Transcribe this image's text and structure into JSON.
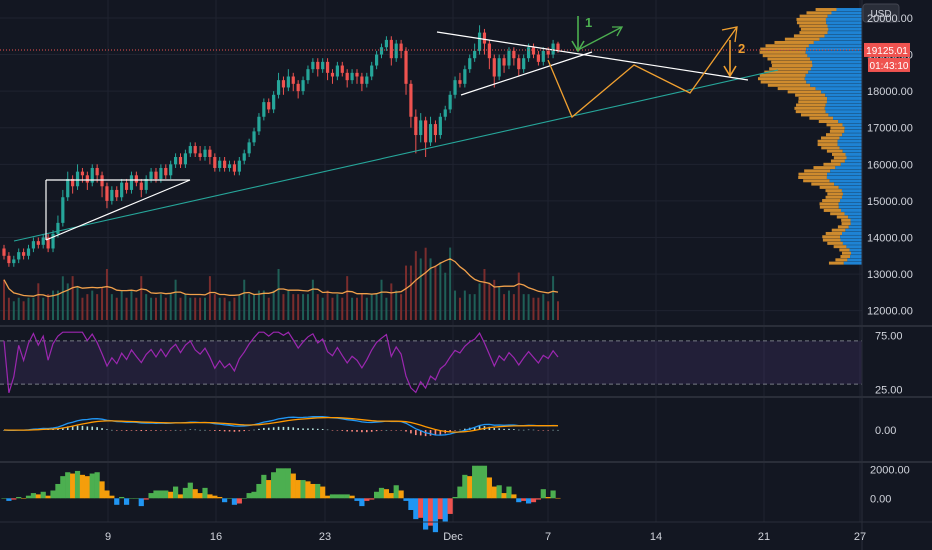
{
  "chart_data": {
    "type": "candlestick",
    "currency": "USD",
    "price_axis": {
      "ticks": [
        12000,
        13000,
        14000,
        15000,
        16000,
        17000,
        18000,
        19000,
        20000
      ],
      "ylim": [
        11800,
        20600
      ]
    },
    "last_price": {
      "value": 19125.01,
      "label": "19125.01",
      "countdown": "01:43:10",
      "color": "#ef5350"
    },
    "time_axis": {
      "labels": [
        "9",
        "16",
        "23",
        "Dec",
        "7",
        "14",
        "21",
        "27"
      ]
    },
    "candles": [
      [
        13700,
        13500,
        13800,
        13400
      ],
      [
        13500,
        13300,
        13600,
        13200
      ],
      [
        13300,
        13400,
        13500,
        13200
      ],
      [
        13400,
        13600,
        13700,
        13300
      ],
      [
        13600,
        13500,
        13700,
        13400
      ],
      [
        13500,
        13700,
        13800,
        13400
      ],
      [
        13700,
        13900,
        14000,
        13600
      ],
      [
        13900,
        13800,
        14000,
        13700
      ],
      [
        13800,
        14000,
        14100,
        13700
      ],
      [
        14000,
        13700,
        14100,
        13600
      ],
      [
        13700,
        14100,
        14200,
        13600
      ],
      [
        14100,
        14400,
        14600,
        14000
      ],
      [
        14400,
        15100,
        15300,
        14300
      ],
      [
        15100,
        15600,
        15800,
        15000
      ],
      [
        15600,
        15400,
        15700,
        15200
      ],
      [
        15400,
        15800,
        16000,
        15300
      ],
      [
        15800,
        15700,
        15900,
        15500
      ],
      [
        15700,
        15500,
        15800,
        15300
      ],
      [
        15500,
        15900,
        16000,
        15400
      ],
      [
        15900,
        15700,
        16000,
        15500
      ],
      [
        15700,
        15400,
        15800,
        15100
      ],
      [
        15400,
        15000,
        15500,
        14800
      ],
      [
        15000,
        15300,
        15400,
        14900
      ],
      [
        15300,
        15100,
        15400,
        15000
      ],
      [
        15100,
        15500,
        15600,
        15000
      ],
      [
        15500,
        15300,
        15600,
        15200
      ],
      [
        15300,
        15700,
        15800,
        15200
      ],
      [
        15700,
        15500,
        15800,
        15400
      ],
      [
        15500,
        15300,
        15600,
        15100
      ],
      [
        15300,
        15600,
        15700,
        15200
      ],
      [
        15600,
        15800,
        15900,
        15500
      ],
      [
        15800,
        15600,
        15900,
        15500
      ],
      [
        15600,
        15900,
        16000,
        15500
      ],
      [
        15900,
        15700,
        16000,
        15600
      ],
      [
        15700,
        16000,
        16100,
        15600
      ],
      [
        16000,
        16200,
        16300,
        15900
      ],
      [
        16200,
        16000,
        16300,
        15900
      ],
      [
        16000,
        16300,
        16400,
        15900
      ],
      [
        16300,
        16500,
        16600,
        16200
      ],
      [
        16500,
        16300,
        16600,
        16200
      ],
      [
        16300,
        16200,
        16500,
        16100
      ],
      [
        16200,
        16400,
        16500,
        16100
      ],
      [
        16400,
        16200,
        16500,
        16000
      ],
      [
        16200,
        15900,
        16300,
        15800
      ],
      [
        15900,
        16100,
        16200,
        15800
      ],
      [
        16100,
        15900,
        16200,
        15800
      ],
      [
        15900,
        16000,
        16100,
        15800
      ],
      [
        16000,
        15800,
        16100,
        15700
      ],
      [
        15800,
        16100,
        16200,
        15700
      ],
      [
        16100,
        16300,
        16400,
        16000
      ],
      [
        16300,
        16600,
        16700,
        16200
      ],
      [
        16600,
        16900,
        17000,
        16500
      ],
      [
        16900,
        17300,
        17400,
        16800
      ],
      [
        17300,
        17700,
        17800,
        17200
      ],
      [
        17700,
        17500,
        17800,
        17400
      ],
      [
        17500,
        17900,
        18000,
        17400
      ],
      [
        17900,
        18300,
        18500,
        17800
      ],
      [
        18300,
        18100,
        18400,
        17900
      ],
      [
        18100,
        18400,
        18600,
        18000
      ],
      [
        18400,
        18200,
        18500,
        18000
      ],
      [
        18200,
        18000,
        18300,
        17800
      ],
      [
        18000,
        18300,
        18400,
        17900
      ],
      [
        18300,
        18600,
        18700,
        18200
      ],
      [
        18600,
        18800,
        18900,
        18500
      ],
      [
        18800,
        18600,
        18900,
        18400
      ],
      [
        18600,
        18800,
        18900,
        18500
      ],
      [
        18800,
        18500,
        18900,
        18300
      ],
      [
        18500,
        18400,
        18600,
        18200
      ],
      [
        18400,
        18700,
        18800,
        18300
      ],
      [
        18700,
        18500,
        18800,
        18400
      ],
      [
        18500,
        18300,
        18600,
        18100
      ],
      [
        18300,
        18500,
        18600,
        18200
      ],
      [
        18500,
        18400,
        18600,
        18200
      ],
      [
        18400,
        18200,
        18500,
        18000
      ],
      [
        18200,
        18400,
        18500,
        18100
      ],
      [
        18400,
        18700,
        18800,
        18300
      ],
      [
        18700,
        19000,
        19100,
        18600
      ],
      [
        19000,
        19200,
        19300,
        18900
      ],
      [
        19200,
        19400,
        19500,
        19100
      ],
      [
        19400,
        18900,
        19500,
        18700
      ],
      [
        18900,
        19300,
        19400,
        18800
      ],
      [
        19300,
        19100,
        19400,
        18900
      ],
      [
        19100,
        18200,
        19200,
        17900
      ],
      [
        18200,
        17300,
        18300,
        17000
      ],
      [
        17300,
        16800,
        17500,
        16300
      ],
      [
        16800,
        17200,
        17400,
        16600
      ],
      [
        17200,
        16600,
        17300,
        16200
      ],
      [
        16600,
        17100,
        17300,
        16500
      ],
      [
        17100,
        16800,
        17200,
        16600
      ],
      [
        16800,
        17300,
        17400,
        16700
      ],
      [
        17300,
        17500,
        17600,
        17200
      ],
      [
        17500,
        17900,
        18000,
        17400
      ],
      [
        17900,
        18300,
        18400,
        17800
      ],
      [
        18300,
        18200,
        18500,
        18100
      ],
      [
        18200,
        18600,
        18700,
        18100
      ],
      [
        18600,
        18900,
        19000,
        18500
      ],
      [
        18900,
        19100,
        19300,
        18800
      ],
      [
        19100,
        19600,
        19800,
        19000
      ],
      [
        19600,
        19300,
        19700,
        19000
      ],
      [
        19300,
        18900,
        19400,
        18600
      ],
      [
        18900,
        18400,
        19000,
        18100
      ],
      [
        18400,
        18900,
        19000,
        18300
      ],
      [
        18900,
        18700,
        19000,
        18500
      ],
      [
        18700,
        19100,
        19200,
        18600
      ],
      [
        19100,
        18900,
        19200,
        18700
      ],
      [
        18900,
        18600,
        19000,
        18400
      ],
      [
        18600,
        18900,
        19000,
        18500
      ],
      [
        18900,
        19200,
        19300,
        18800
      ],
      [
        19200,
        19000,
        19300,
        18900
      ],
      [
        19000,
        18800,
        19100,
        18700
      ],
      [
        18800,
        19100,
        19200,
        18700
      ],
      [
        19100,
        19000,
        19200,
        18900
      ],
      [
        19000,
        19300,
        19400,
        18900
      ],
      [
        19300,
        19125,
        19350,
        19050
      ]
    ],
    "volume": {
      "color": "#f0a04b"
    },
    "rsi": {
      "ticks": [
        75,
        25
      ],
      "levels": [
        70,
        30
      ],
      "ylim": [
        20,
        80
      ]
    },
    "macd": {
      "ticks": [
        0
      ],
      "ylim": [
        -1500,
        1500
      ]
    },
    "momentum": {
      "ticks": [
        2000,
        0
      ],
      "ylim": [
        -1500,
        2300
      ]
    },
    "annotations": [
      {
        "type": "label",
        "text": "1",
        "color": "#4caf50"
      },
      {
        "type": "label",
        "text": "2",
        "color": "#f0a030"
      }
    ],
    "colors": {
      "up": "#26a69a",
      "down": "#ef5350",
      "rsi": "#9c27b0",
      "macd": "#2196f3",
      "signal": "#ff9800",
      "green_projection": "#4caf50",
      "orange_projection": "#f0a030",
      "pattern": "#ffffff",
      "trendline": "#26a69a",
      "vp_up": "#2196f3",
      "vp_down": "#f0a030"
    }
  }
}
